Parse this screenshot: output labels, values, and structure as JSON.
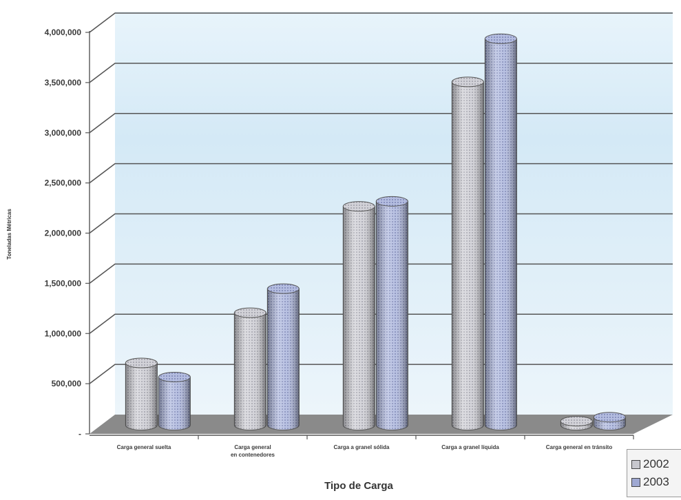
{
  "colors": {
    "series_2002": "#c8c8ce",
    "series_2003": "#9ea8d2",
    "grid": "#555555",
    "floor": "#8a8a8a"
  },
  "legend": {
    "items": [
      {
        "label": "2002"
      },
      {
        "label": "2003"
      }
    ]
  },
  "chart_data": {
    "type": "bar",
    "title": "",
    "xlabel": "Tipo de Carga",
    "ylabel": "Toneladas Métricas",
    "ylim": [
      0,
      4000000
    ],
    "y_ticks": [
      "-",
      "500,000",
      "1,000,000",
      "1,500,000",
      "2,000,000",
      "2,500,000",
      "3,000,000",
      "3,500,000",
      "4,000,000"
    ],
    "categories": [
      "Carga general suelta",
      "Carga general en contenedores",
      "Carga a granel sólida",
      "Carga a granel líquida",
      "Carga general en tránsito"
    ],
    "series": [
      {
        "name": "2002",
        "values": [
          620000,
          1120000,
          2180000,
          3420000,
          40000
        ]
      },
      {
        "name": "2003",
        "values": [
          480000,
          1360000,
          2230000,
          3850000,
          80000
        ]
      }
    ],
    "grid": true,
    "legend_position": "bottom-right",
    "bar_style": "3d-cylinder"
  }
}
